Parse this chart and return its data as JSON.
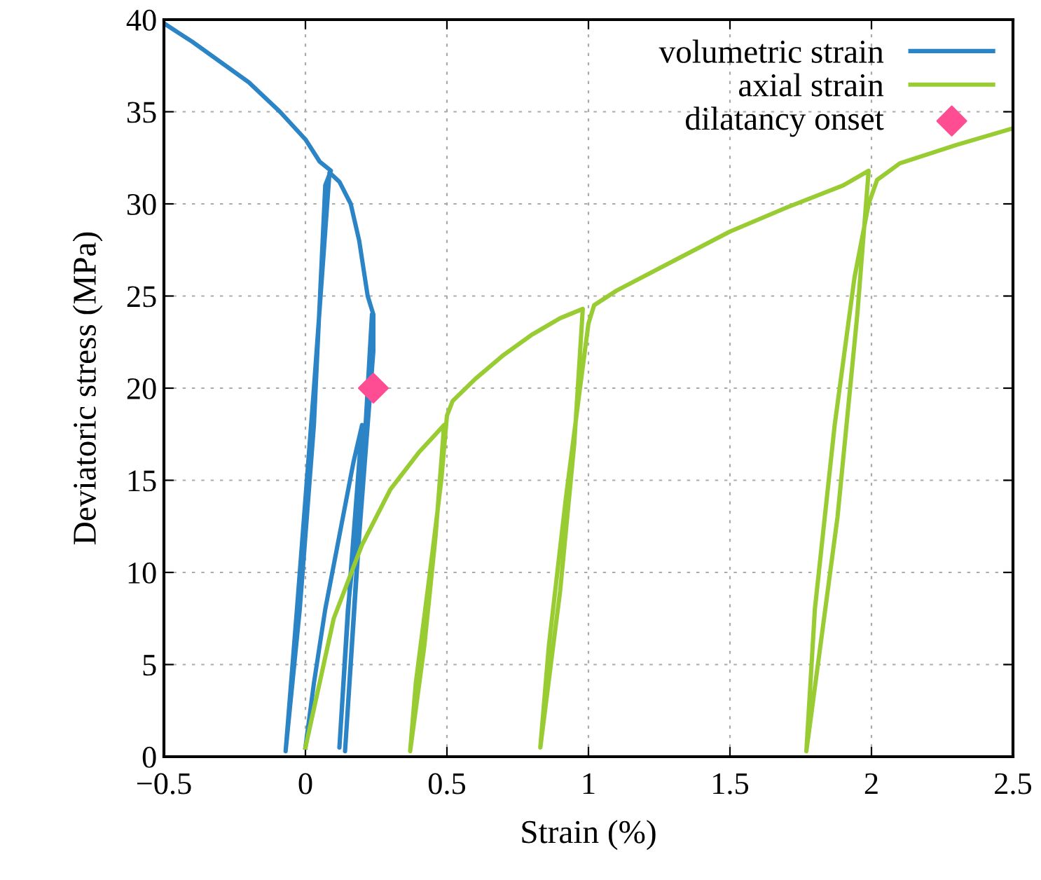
{
  "chart_data": {
    "type": "line",
    "xlabel": "Strain (%)",
    "ylabel": "Deviatoric stress (MPa)",
    "xlim": [
      -0.5,
      2.5
    ],
    "ylim": [
      0,
      40
    ],
    "xticks": [
      {
        "value": -0.5,
        "label": "−0.5"
      },
      0,
      0.5,
      1,
      1.5,
      2,
      2.5
    ],
    "yticks": [
      0,
      5,
      10,
      15,
      20,
      25,
      30,
      35,
      40
    ],
    "grid": true,
    "legend": "top right",
    "marker": "none",
    "line_style": "solid",
    "series": [
      {
        "name": "volumetric strain",
        "color": "#2b84c6",
        "x": [
          0.0,
          0.03,
          0.07,
          0.12,
          0.17,
          0.2,
          0.16,
          0.12,
          0.15,
          0.19,
          0.22,
          0.235,
          0.19,
          0.14,
          0.18,
          0.22,
          0.24,
          0.24,
          0.22,
          0.19,
          0.16,
          0.12,
          0.085,
          0.03,
          -0.03,
          -0.07,
          -0.02,
          0.03,
          0.07,
          0.09,
          0.05,
          0.0,
          -0.09,
          -0.2,
          -0.3,
          -0.4,
          -0.5
        ],
        "values": [
          0.5,
          4,
          8,
          12,
          16,
          18,
          10,
          0.5,
          8,
          14,
          19,
          24,
          12,
          0.3,
          10,
          18,
          22,
          24,
          25,
          28,
          30,
          31.2,
          31.7,
          20,
          8,
          0.3,
          8,
          18,
          31,
          31.8,
          32.3,
          33.5,
          35,
          36.6,
          37.7,
          38.8,
          39.8
        ]
      },
      {
        "name": "axial strain",
        "color": "#99cc33",
        "x": [
          0.0,
          0.05,
          0.1,
          0.2,
          0.3,
          0.4,
          0.49,
          0.46,
          0.42,
          0.37,
          0.39,
          0.44,
          0.48,
          0.5,
          0.52,
          0.6,
          0.7,
          0.8,
          0.9,
          0.98,
          0.95,
          0.9,
          0.83,
          0.86,
          0.92,
          0.97,
          1.0,
          1.02,
          1.1,
          1.3,
          1.5,
          1.7,
          1.9,
          1.99,
          1.95,
          1.88,
          1.77,
          1.8,
          1.87,
          1.94,
          1.99,
          2.02,
          2.1,
          2.3,
          2.5
        ],
        "values": [
          0.5,
          4,
          7.5,
          11.5,
          14.5,
          16.5,
          18,
          12,
          6,
          0.3,
          4,
          10,
          15,
          18.5,
          19.3,
          20.5,
          21.8,
          22.9,
          23.8,
          24.3,
          17,
          9,
          0.5,
          6,
          14,
          20,
          23.5,
          24.5,
          25.3,
          26.9,
          28.5,
          29.8,
          31,
          31.8,
          24,
          13,
          0.3,
          8,
          18,
          26,
          30,
          31.3,
          32.2,
          33.2,
          34.1
        ]
      },
      {
        "name": "dilatancy onset",
        "type": "scatter",
        "marker": "diamond",
        "color": "#ff4d94",
        "x": [
          0.24
        ],
        "values": [
          20
        ]
      }
    ]
  }
}
